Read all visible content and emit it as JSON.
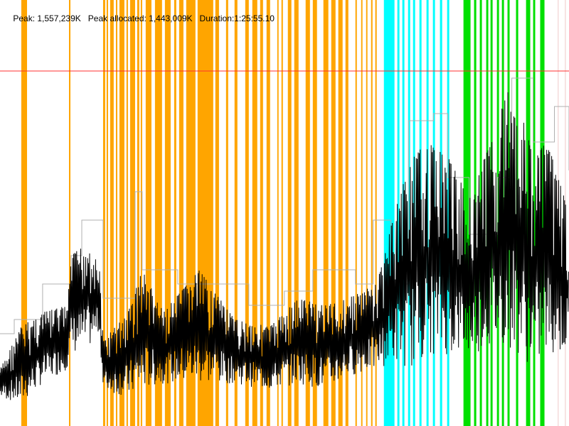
{
  "header": {
    "peak": "Peak: 1,557,239K",
    "peak_allocated": "Peak allocated: 1,443,009K",
    "duration": "Duration:1:25:55.10"
  },
  "chart_data": {
    "type": "line",
    "title": "",
    "xlabel": "",
    "ylabel": "",
    "x_unit": "seconds",
    "y_unit": "K",
    "xlim": [
      0,
      5155.1
    ],
    "ylim": [
      0,
      1800000
    ],
    "grid": false,
    "colors": {
      "orange": "#ffa500",
      "cyan": "#00ffff",
      "green": "#00e000",
      "pink": "#f0c8c8",
      "gray": "#b0b0b0",
      "black": "#000000",
      "red": "#ff3030"
    },
    "reference_line": {
      "y": 1500000,
      "color": "#ff3030"
    },
    "bands": [
      [
        193,
        245,
        "orange"
      ],
      [
        625,
        638,
        "orange"
      ],
      [
        934,
        953,
        "orange"
      ],
      [
        966,
        979,
        "orange"
      ],
      [
        998,
        1030,
        "orange"
      ],
      [
        1050,
        1063,
        "orange"
      ],
      [
        1082,
        1127,
        "orange"
      ],
      [
        1146,
        1159,
        "orange"
      ],
      [
        1179,
        1224,
        "orange"
      ],
      [
        1243,
        1262,
        "orange"
      ],
      [
        1275,
        1288,
        "orange"
      ],
      [
        1320,
        1372,
        "orange"
      ],
      [
        1404,
        1468,
        "orange"
      ],
      [
        1494,
        1546,
        "orange"
      ],
      [
        1578,
        1597,
        "orange"
      ],
      [
        1623,
        1662,
        "orange"
      ],
      [
        1687,
        1771,
        "orange"
      ],
      [
        1790,
        1932,
        "orange"
      ],
      [
        1951,
        1984,
        "orange"
      ],
      [
        2048,
        2067,
        "orange"
      ],
      [
        2125,
        2151,
        "orange"
      ],
      [
        2222,
        2254,
        "orange"
      ],
      [
        2286,
        2331,
        "orange"
      ],
      [
        2357,
        2383,
        "orange"
      ],
      [
        2415,
        2447,
        "orange"
      ],
      [
        2512,
        2524,
        "orange"
      ],
      [
        2550,
        2563,
        "orange"
      ],
      [
        2608,
        2640,
        "orange"
      ],
      [
        2666,
        2705,
        "orange"
      ],
      [
        2769,
        2808,
        "orange"
      ],
      [
        2834,
        2872,
        "orange"
      ],
      [
        2930,
        2975,
        "orange"
      ],
      [
        3001,
        3040,
        "orange"
      ],
      [
        3065,
        3104,
        "orange"
      ],
      [
        3130,
        3156,
        "orange"
      ],
      [
        3220,
        3233,
        "orange"
      ],
      [
        3272,
        3284,
        "orange"
      ],
      [
        3317,
        3329,
        "orange"
      ],
      [
        3362,
        3375,
        "orange"
      ],
      [
        3400,
        3413,
        "orange"
      ],
      [
        3478,
        3574,
        "cyan"
      ],
      [
        3600,
        3619,
        "cyan"
      ],
      [
        3645,
        3664,
        "cyan"
      ],
      [
        3697,
        3716,
        "cyan"
      ],
      [
        3742,
        3761,
        "cyan"
      ],
      [
        3800,
        3819,
        "cyan"
      ],
      [
        3864,
        3883,
        "cyan"
      ],
      [
        3922,
        3941,
        "cyan"
      ],
      [
        3986,
        4006,
        "cyan"
      ],
      [
        4051,
        4070,
        "cyan"
      ],
      [
        4199,
        4263,
        "green"
      ],
      [
        4295,
        4315,
        "green"
      ],
      [
        4347,
        4366,
        "green"
      ],
      [
        4405,
        4424,
        "green"
      ],
      [
        4444,
        4463,
        "green"
      ],
      [
        4502,
        4521,
        "green"
      ],
      [
        4547,
        4566,
        "green"
      ],
      [
        4598,
        4617,
        "green"
      ],
      [
        4675,
        4695,
        "green"
      ],
      [
        4766,
        4804,
        "green"
      ],
      [
        4830,
        4849,
        "green"
      ],
      [
        4894,
        4933,
        "green"
      ],
      [
        5054,
        5058,
        "pink"
      ],
      [
        5119,
        5123,
        "pink"
      ]
    ],
    "series": [
      {
        "color": "gray",
        "points": [
          [
            0,
            390000
          ],
          [
            129,
            450000
          ],
          [
            386,
            600000
          ],
          [
            644,
            720000
          ],
          [
            741,
            870000
          ],
          [
            902,
            870000
          ],
          [
            934,
            540000
          ],
          [
            1224,
            990000
          ],
          [
            1288,
            660000
          ],
          [
            1610,
            600000
          ],
          [
            1932,
            600000
          ],
          [
            2254,
            510000
          ],
          [
            2576,
            570000
          ],
          [
            2834,
            660000
          ],
          [
            3220,
            600000
          ],
          [
            3381,
            870000
          ],
          [
            3542,
            600000
          ],
          [
            3703,
            1290000
          ],
          [
            3928,
            1320000
          ],
          [
            4057,
            1050000
          ],
          [
            4250,
            810000
          ],
          [
            4508,
            1050000
          ],
          [
            4637,
            1470000
          ],
          [
            4830,
            1200000
          ],
          [
            5023,
            1350000
          ],
          [
            5155,
            1080000
          ]
        ]
      },
      {
        "color": "black",
        "envelope": [
          [
            0,
            120000,
            240000
          ],
          [
            193,
            90000,
            420000
          ],
          [
            386,
            180000,
            480000
          ],
          [
            612,
            240000,
            510000
          ],
          [
            644,
            300000,
            720000
          ],
          [
            805,
            330000,
            780000
          ],
          [
            902,
            390000,
            660000
          ],
          [
            934,
            150000,
            360000
          ],
          [
            1159,
            120000,
            480000
          ],
          [
            1288,
            150000,
            660000
          ],
          [
            1481,
            180000,
            480000
          ],
          [
            1803,
            180000,
            660000
          ],
          [
            2125,
            180000,
            450000
          ],
          [
            2447,
            150000,
            420000
          ],
          [
            2705,
            180000,
            540000
          ],
          [
            2962,
            150000,
            510000
          ],
          [
            3156,
            210000,
            540000
          ],
          [
            3413,
            240000,
            600000
          ],
          [
            3574,
            270000,
            900000
          ],
          [
            3703,
            240000,
            1110000
          ],
          [
            3864,
            300000,
            1200000
          ],
          [
            4057,
            300000,
            1140000
          ],
          [
            4250,
            300000,
            960000
          ],
          [
            4444,
            330000,
            1200000
          ],
          [
            4637,
            330000,
            1470000
          ],
          [
            4830,
            240000,
            1140000
          ],
          [
            4959,
            300000,
            1200000
          ],
          [
            5155,
            300000,
            900000
          ]
        ]
      }
    ]
  }
}
